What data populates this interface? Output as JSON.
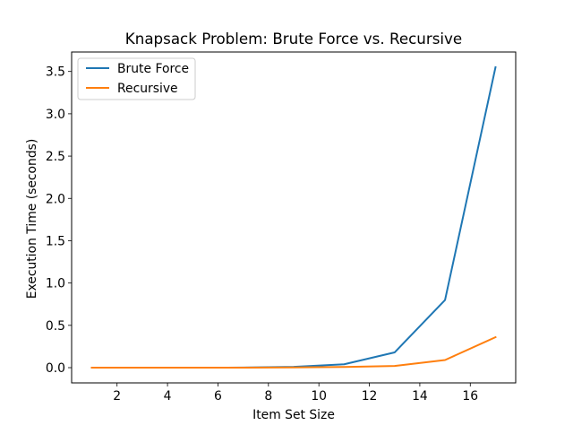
{
  "chart_data": {
    "type": "line",
    "title": "Knapsack Problem: Brute Force vs. Recursive",
    "xlabel": "Item Set Size",
    "ylabel": "Execution Time (seconds)",
    "x": [
      1,
      3,
      5,
      7,
      9,
      11,
      13,
      15,
      17
    ],
    "series": [
      {
        "name": "Brute Force",
        "color": "#1f77b4",
        "values": [
          0.0,
          0.0,
          0.0,
          0.001,
          0.01,
          0.04,
          0.18,
          0.8,
          3.55
        ]
      },
      {
        "name": "Recursive",
        "color": "#ff7f0e",
        "values": [
          0.0,
          0.0,
          0.0,
          0.0,
          0.003,
          0.008,
          0.02,
          0.09,
          0.36
        ]
      }
    ],
    "xlim": [
      0.2,
      17.8
    ],
    "ylim": [
      -0.18,
      3.73
    ],
    "xticks": [
      2,
      4,
      6,
      8,
      10,
      12,
      14,
      16
    ],
    "xtick_labels": [
      "2",
      "4",
      "6",
      "8",
      "10",
      "12",
      "14",
      "16"
    ],
    "yticks": [
      0.0,
      0.5,
      1.0,
      1.5,
      2.0,
      2.5,
      3.0,
      3.5
    ],
    "ytick_labels": [
      "0.0",
      "0.5",
      "1.0",
      "1.5",
      "2.0",
      "2.5",
      "3.0",
      "3.5"
    ],
    "grid": false,
    "legend_position": "upper-left"
  }
}
